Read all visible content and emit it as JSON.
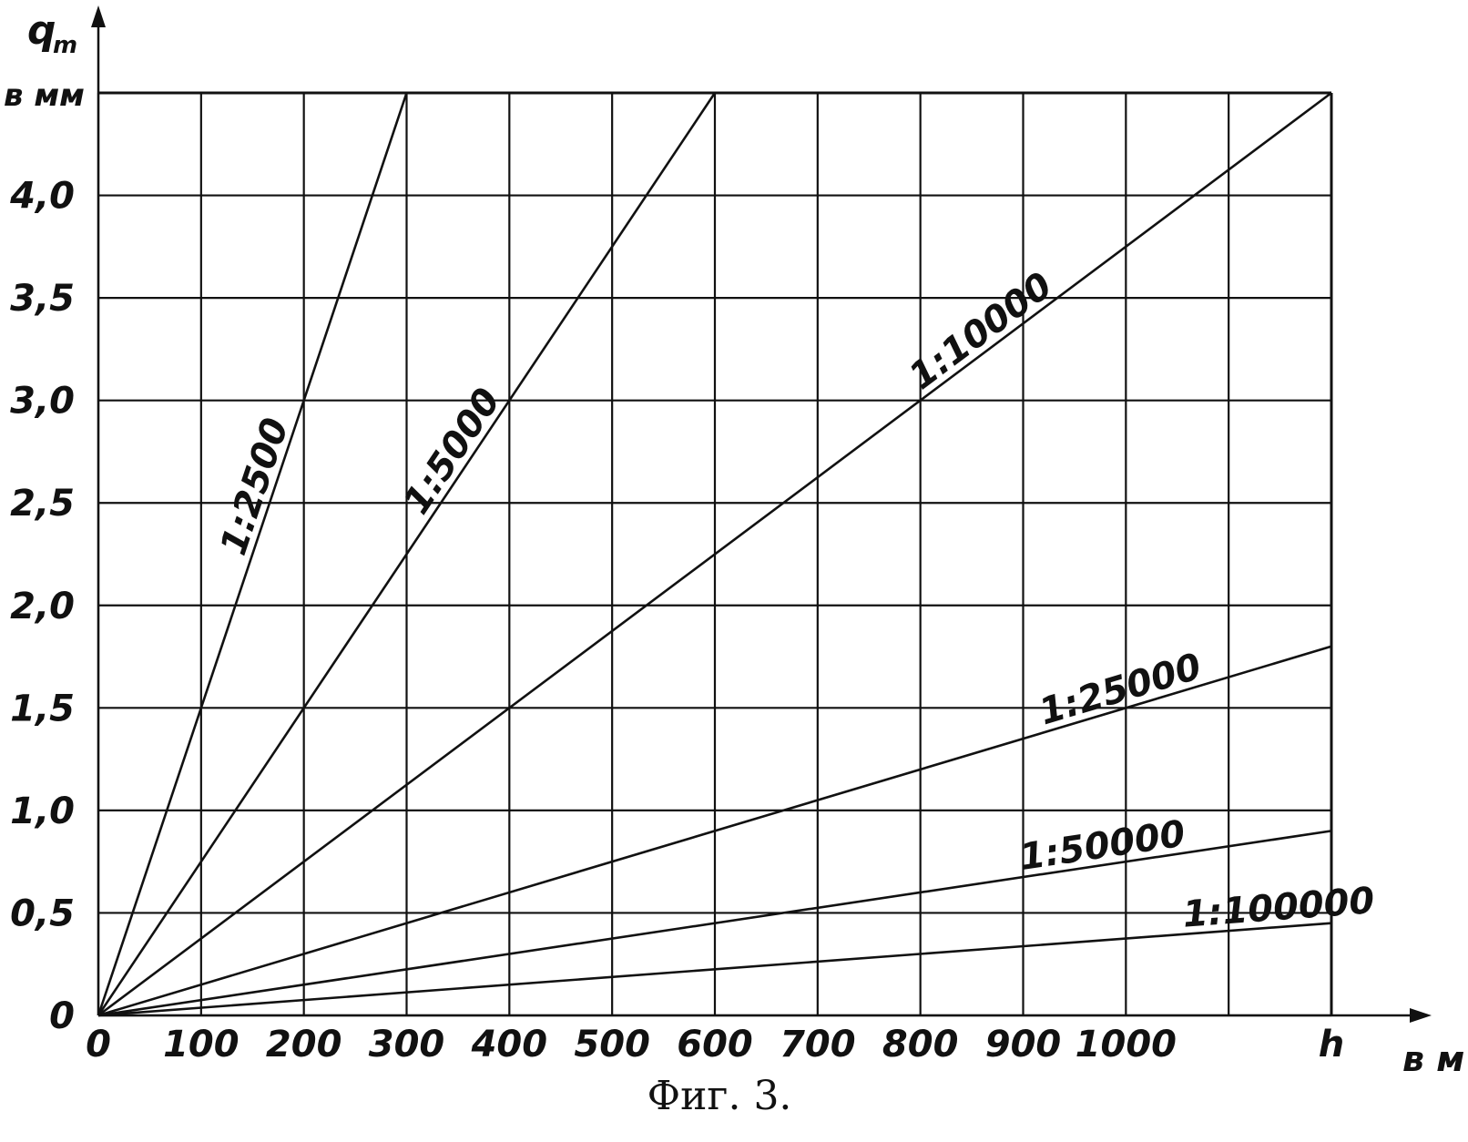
{
  "chart_data": {
    "type": "line",
    "caption": "Фиг. 3.",
    "xlabel_symbol": "h",
    "xlabel_unit": "в м",
    "ylabel_symbol": "q",
    "ylabel_subscript": "m",
    "ylabel_unit": "в мм",
    "xlim": [
      0,
      1200
    ],
    "ylim": [
      0,
      4.5
    ],
    "grid": true,
    "x_ticks": [
      0,
      100,
      200,
      300,
      400,
      500,
      600,
      700,
      800,
      900,
      1000,
      1100,
      1200
    ],
    "x_tick_labels": [
      "0",
      "100",
      "200",
      "300",
      "400",
      "500",
      "600",
      "700",
      "800",
      "900",
      "1000",
      "",
      "h"
    ],
    "y_ticks": [
      0,
      0.5,
      1.0,
      1.5,
      2.0,
      2.5,
      3.0,
      3.5,
      4.0,
      4.5
    ],
    "y_tick_labels": [
      "0",
      "0,5",
      "1,0",
      "1,5",
      "2,0",
      "2,5",
      "3,0",
      "3,5",
      "4,0",
      ""
    ],
    "series": [
      {
        "name": "1:2500",
        "x": [
          0,
          300
        ],
        "y": [
          0,
          4.5
        ]
      },
      {
        "name": "1:5000",
        "x": [
          0,
          600
        ],
        "y": [
          0,
          4.5
        ]
      },
      {
        "name": "1:10000",
        "x": [
          0,
          1200
        ],
        "y": [
          0,
          4.5
        ]
      },
      {
        "name": "1:25000",
        "x": [
          0,
          1200
        ],
        "y": [
          0,
          1.8
        ]
      },
      {
        "name": "1:50000",
        "x": [
          0,
          1200
        ],
        "y": [
          0,
          0.9
        ]
      },
      {
        "name": "1:100000",
        "x": [
          0,
          1200
        ],
        "y": [
          0,
          0.45
        ]
      }
    ]
  }
}
